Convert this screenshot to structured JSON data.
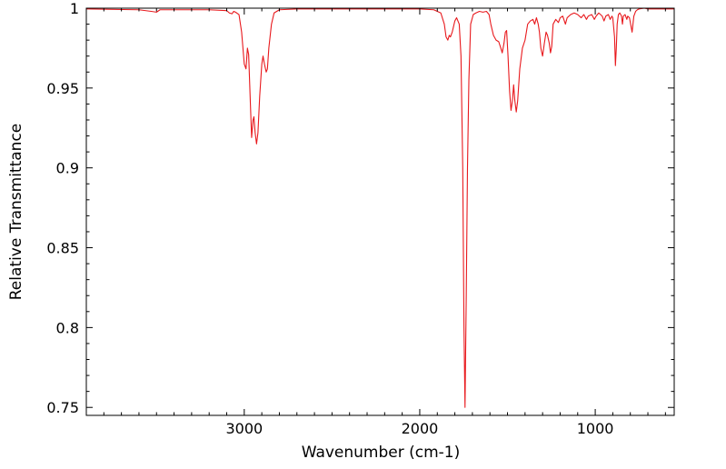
{
  "chart_data": {
    "type": "line",
    "xlabel": "Wavenumber (cm-1)",
    "ylabel": "Relative Transmittance",
    "xlim": [
      3900,
      550
    ],
    "ylim": [
      0.745,
      1.0
    ],
    "x_reversed": true,
    "grid": false,
    "line_color": "#e8191d",
    "x_ticks": [
      {
        "value": 3000,
        "label": "3000"
      },
      {
        "value": 2000,
        "label": "2000"
      },
      {
        "value": 1000,
        "label": "1000"
      }
    ],
    "y_ticks": [
      {
        "value": 1.0,
        "label": "1"
      },
      {
        "value": 0.95,
        "label": "0.95"
      },
      {
        "value": 0.9,
        "label": "0.9"
      },
      {
        "value": 0.85,
        "label": "0.85"
      },
      {
        "value": 0.8,
        "label": "0.8"
      },
      {
        "value": 0.75,
        "label": "0.75"
      }
    ],
    "series": [
      {
        "points": [
          [
            3900,
            0.9995
          ],
          [
            3600,
            0.999
          ],
          [
            3530,
            0.998
          ],
          [
            3500,
            0.9975
          ],
          [
            3480,
            0.999
          ],
          [
            3200,
            0.999
          ],
          [
            3100,
            0.9985
          ],
          [
            3085,
            0.997
          ],
          [
            3070,
            0.9965
          ],
          [
            3060,
            0.998
          ],
          [
            3050,
            0.9975
          ],
          [
            3030,
            0.996
          ],
          [
            3015,
            0.985
          ],
          [
            3000,
            0.965
          ],
          [
            2990,
            0.962
          ],
          [
            2982,
            0.975
          ],
          [
            2975,
            0.971
          ],
          [
            2965,
            0.94
          ],
          [
            2958,
            0.919
          ],
          [
            2950,
            0.93
          ],
          [
            2945,
            0.932
          ],
          [
            2938,
            0.922
          ],
          [
            2930,
            0.915
          ],
          [
            2922,
            0.922
          ],
          [
            2912,
            0.945
          ],
          [
            2900,
            0.965
          ],
          [
            2893,
            0.97
          ],
          [
            2885,
            0.965
          ],
          [
            2875,
            0.96
          ],
          [
            2868,
            0.962
          ],
          [
            2860,
            0.975
          ],
          [
            2845,
            0.99
          ],
          [
            2830,
            0.997
          ],
          [
            2800,
            0.999
          ],
          [
            2700,
            0.9995
          ],
          [
            2400,
            0.9995
          ],
          [
            2000,
            0.9995
          ],
          [
            1920,
            0.999
          ],
          [
            1880,
            0.997
          ],
          [
            1860,
            0.99
          ],
          [
            1850,
            0.982
          ],
          [
            1840,
            0.98
          ],
          [
            1832,
            0.983
          ],
          [
            1825,
            0.982
          ],
          [
            1815,
            0.985
          ],
          [
            1800,
            0.992
          ],
          [
            1790,
            0.994
          ],
          [
            1775,
            0.99
          ],
          [
            1765,
            0.97
          ],
          [
            1755,
            0.9
          ],
          [
            1748,
            0.8
          ],
          [
            1742,
            0.75
          ],
          [
            1735,
            0.82
          ],
          [
            1728,
            0.9
          ],
          [
            1720,
            0.955
          ],
          [
            1710,
            0.99
          ],
          [
            1695,
            0.996
          ],
          [
            1680,
            0.997
          ],
          [
            1660,
            0.998
          ],
          [
            1640,
            0.9975
          ],
          [
            1620,
            0.998
          ],
          [
            1605,
            0.996
          ],
          [
            1595,
            0.99
          ],
          [
            1580,
            0.983
          ],
          [
            1565,
            0.98
          ],
          [
            1550,
            0.979
          ],
          [
            1538,
            0.975
          ],
          [
            1530,
            0.972
          ],
          [
            1520,
            0.978
          ],
          [
            1512,
            0.985
          ],
          [
            1505,
            0.986
          ],
          [
            1497,
            0.97
          ],
          [
            1488,
            0.948
          ],
          [
            1480,
            0.936
          ],
          [
            1472,
            0.942
          ],
          [
            1465,
            0.952
          ],
          [
            1458,
            0.942
          ],
          [
            1450,
            0.935
          ],
          [
            1442,
            0.942
          ],
          [
            1430,
            0.962
          ],
          [
            1415,
            0.975
          ],
          [
            1400,
            0.98
          ],
          [
            1385,
            0.99
          ],
          [
            1370,
            0.992
          ],
          [
            1355,
            0.993
          ],
          [
            1345,
            0.99
          ],
          [
            1335,
            0.994
          ],
          [
            1325,
            0.99
          ],
          [
            1318,
            0.985
          ],
          [
            1310,
            0.975
          ],
          [
            1300,
            0.97
          ],
          [
            1290,
            0.978
          ],
          [
            1280,
            0.985
          ],
          [
            1272,
            0.983
          ],
          [
            1262,
            0.978
          ],
          [
            1255,
            0.972
          ],
          [
            1248,
            0.976
          ],
          [
            1240,
            0.99
          ],
          [
            1225,
            0.993
          ],
          [
            1210,
            0.991
          ],
          [
            1200,
            0.994
          ],
          [
            1185,
            0.995
          ],
          [
            1170,
            0.99
          ],
          [
            1160,
            0.994
          ],
          [
            1140,
            0.996
          ],
          [
            1120,
            0.997
          ],
          [
            1100,
            0.996
          ],
          [
            1080,
            0.994
          ],
          [
            1065,
            0.996
          ],
          [
            1050,
            0.993
          ],
          [
            1040,
            0.995
          ],
          [
            1020,
            0.996
          ],
          [
            1005,
            0.993
          ],
          [
            995,
            0.995
          ],
          [
            980,
            0.997
          ],
          [
            960,
            0.995
          ],
          [
            950,
            0.992
          ],
          [
            940,
            0.995
          ],
          [
            925,
            0.996
          ],
          [
            915,
            0.993
          ],
          [
            905,
            0.995
          ],
          [
            900,
            0.994
          ],
          [
            890,
            0.982
          ],
          [
            885,
            0.964
          ],
          [
            880,
            0.975
          ],
          [
            875,
            0.99
          ],
          [
            868,
            0.996
          ],
          [
            860,
            0.997
          ],
          [
            850,
            0.995
          ],
          [
            845,
            0.99
          ],
          [
            840,
            0.995
          ],
          [
            830,
            0.996
          ],
          [
            820,
            0.993
          ],
          [
            815,
            0.995
          ],
          [
            805,
            0.994
          ],
          [
            795,
            0.988
          ],
          [
            790,
            0.985
          ],
          [
            785,
            0.99
          ],
          [
            780,
            0.995
          ],
          [
            770,
            0.998
          ],
          [
            760,
            0.999
          ],
          [
            750,
            0.9995
          ],
          [
            720,
            1.0
          ],
          [
            700,
            0.9995
          ],
          [
            550,
            0.9995
          ]
        ]
      }
    ]
  }
}
